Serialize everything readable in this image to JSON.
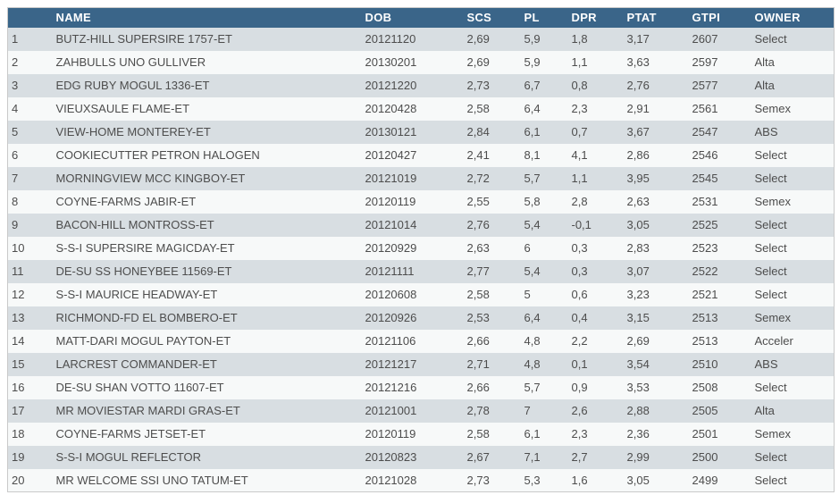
{
  "colors": {
    "header_bg": "#3a6589",
    "header_text": "#ffffff",
    "row_odd": "#d8dee2",
    "row_even": "#f7f9f9",
    "border": "#cacaca",
    "cell_text": "#4d4d4d",
    "page_bg": "#ffffff"
  },
  "table": {
    "columns": [
      {
        "key": "rank",
        "label": ""
      },
      {
        "key": "name",
        "label": "NAME"
      },
      {
        "key": "dob",
        "label": "DOB"
      },
      {
        "key": "scs",
        "label": "SCS"
      },
      {
        "key": "pl",
        "label": "PL"
      },
      {
        "key": "dpr",
        "label": "DPR"
      },
      {
        "key": "ptat",
        "label": "PTAT"
      },
      {
        "key": "gtpi",
        "label": "GTPI"
      },
      {
        "key": "owner",
        "label": "OWNER"
      }
    ],
    "rows": [
      {
        "rank": "1",
        "name": "BUTZ-HILL SUPERSIRE 1757-ET",
        "dob": "20121120",
        "scs": "2,69",
        "pl": "5,9",
        "dpr": "1,8",
        "ptat": "3,17",
        "gtpi": "2607",
        "owner": "Select"
      },
      {
        "rank": "2",
        "name": "ZAHBULLS UNO GULLIVER",
        "dob": "20130201",
        "scs": "2,69",
        "pl": "5,9",
        "dpr": "1,1",
        "ptat": "3,63",
        "gtpi": "2597",
        "owner": "Alta"
      },
      {
        "rank": "3",
        "name": "EDG RUBY MOGUL 1336-ET",
        "dob": "20121220",
        "scs": "2,73",
        "pl": "6,7",
        "dpr": "0,8",
        "ptat": "2,76",
        "gtpi": "2577",
        "owner": "Alta"
      },
      {
        "rank": "4",
        "name": "VIEUXSAULE FLAME-ET",
        "dob": "20120428",
        "scs": "2,58",
        "pl": "6,4",
        "dpr": "2,3",
        "ptat": "2,91",
        "gtpi": "2561",
        "owner": "Semex"
      },
      {
        "rank": "5",
        "name": "VIEW-HOME MONTEREY-ET",
        "dob": "20130121",
        "scs": "2,84",
        "pl": "6,1",
        "dpr": "0,7",
        "ptat": "3,67",
        "gtpi": "2547",
        "owner": "ABS"
      },
      {
        "rank": "6",
        "name": "COOKIECUTTER PETRON HALOGEN",
        "dob": "20120427",
        "scs": "2,41",
        "pl": "8,1",
        "dpr": "4,1",
        "ptat": "2,86",
        "gtpi": "2546",
        "owner": "Select"
      },
      {
        "rank": "7",
        "name": "MORNINGVIEW MCC KINGBOY-ET",
        "dob": "20121019",
        "scs": "2,72",
        "pl": "5,7",
        "dpr": "1,1",
        "ptat": "3,95",
        "gtpi": "2545",
        "owner": "Select"
      },
      {
        "rank": "8",
        "name": "COYNE-FARMS JABIR-ET",
        "dob": "20120119",
        "scs": "2,55",
        "pl": "5,8",
        "dpr": "2,8",
        "ptat": "2,63",
        "gtpi": "2531",
        "owner": "Semex"
      },
      {
        "rank": "9",
        "name": "BACON-HILL MONTROSS-ET",
        "dob": "20121014",
        "scs": "2,76",
        "pl": "5,4",
        "dpr": "-0,1",
        "ptat": "3,05",
        "gtpi": "2525",
        "owner": "Select"
      },
      {
        "rank": "10",
        "name": "S-S-I SUPERSIRE MAGICDAY-ET",
        "dob": "20120929",
        "scs": "2,63",
        "pl": "6",
        "dpr": "0,3",
        "ptat": "2,83",
        "gtpi": "2523",
        "owner": "Select"
      },
      {
        "rank": "11",
        "name": "DE-SU SS HONEYBEE 11569-ET",
        "dob": "20121111",
        "scs": "2,77",
        "pl": "5,4",
        "dpr": "0,3",
        "ptat": "3,07",
        "gtpi": "2522",
        "owner": "Select"
      },
      {
        "rank": "12",
        "name": "S-S-I MAURICE HEADWAY-ET",
        "dob": "20120608",
        "scs": "2,58",
        "pl": "5",
        "dpr": "0,6",
        "ptat": "3,23",
        "gtpi": "2521",
        "owner": "Select"
      },
      {
        "rank": "13",
        "name": "RICHMOND-FD EL BOMBERO-ET",
        "dob": "20120926",
        "scs": "2,53",
        "pl": "6,4",
        "dpr": "0,4",
        "ptat": "3,15",
        "gtpi": "2513",
        "owner": "Semex"
      },
      {
        "rank": "14",
        "name": "MATT-DARI MOGUL PAYTON-ET",
        "dob": "20121106",
        "scs": "2,66",
        "pl": "4,8",
        "dpr": "2,2",
        "ptat": "2,69",
        "gtpi": "2513",
        "owner": "Acceler"
      },
      {
        "rank": "15",
        "name": "LARCREST COMMANDER-ET",
        "dob": "20121217",
        "scs": "2,71",
        "pl": "4,8",
        "dpr": "0,1",
        "ptat": "3,54",
        "gtpi": "2510",
        "owner": "ABS"
      },
      {
        "rank": "16",
        "name": "DE-SU SHAN VOTTO 11607-ET",
        "dob": "20121216",
        "scs": "2,66",
        "pl": "5,7",
        "dpr": "0,9",
        "ptat": "3,53",
        "gtpi": "2508",
        "owner": "Select"
      },
      {
        "rank": "17",
        "name": "MR MOVIESTAR MARDI GRAS-ET",
        "dob": "20121001",
        "scs": "2,78",
        "pl": "7",
        "dpr": "2,6",
        "ptat": "2,88",
        "gtpi": "2505",
        "owner": "Alta"
      },
      {
        "rank": "18",
        "name": "COYNE-FARMS JETSET-ET",
        "dob": "20120119",
        "scs": "2,58",
        "pl": "6,1",
        "dpr": "2,3",
        "ptat": "2,36",
        "gtpi": "2501",
        "owner": "Semex"
      },
      {
        "rank": "19",
        "name": "S-S-I MOGUL REFLECTOR",
        "dob": "20120823",
        "scs": "2,67",
        "pl": "7,1",
        "dpr": "2,7",
        "ptat": "2,99",
        "gtpi": "2500",
        "owner": "Select"
      },
      {
        "rank": "20",
        "name": "MR WELCOME SSI UNO TATUM-ET",
        "dob": "20121028",
        "scs": "2,73",
        "pl": "5,3",
        "dpr": "1,6",
        "ptat": "3,05",
        "gtpi": "2499",
        "owner": "Select"
      }
    ]
  }
}
